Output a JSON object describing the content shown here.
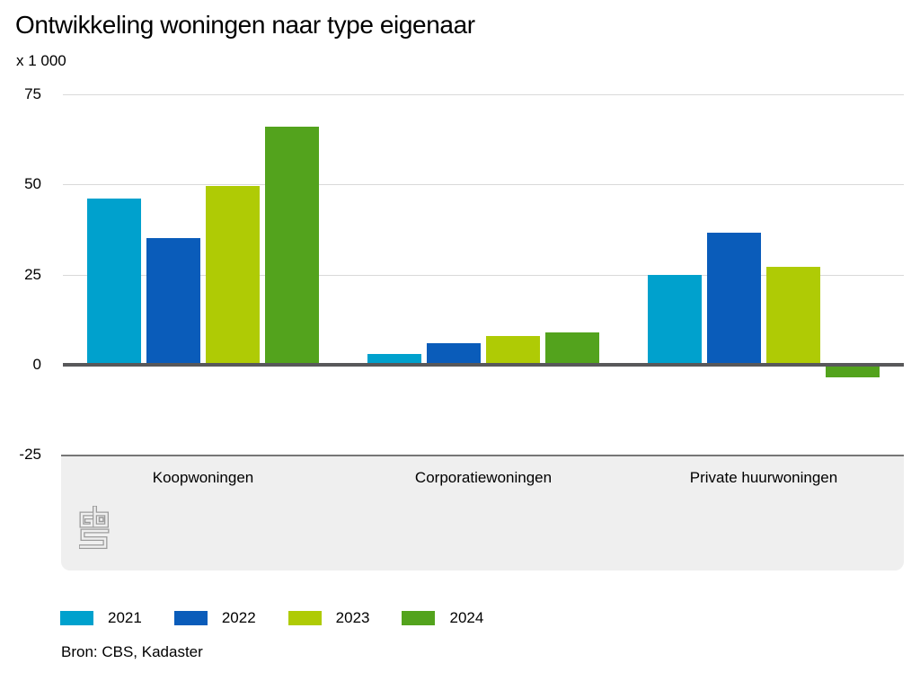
{
  "chart_data": {
    "type": "bar",
    "title": "Ontwikkeling woningen naar type eigenaar",
    "unit_label": "x 1 000",
    "xlabel": "",
    "ylabel": "x 1 000",
    "categories": [
      "Koopwoningen",
      "Corporatiewoningen",
      "Private huurwoningen"
    ],
    "series": [
      {
        "name": "2021",
        "color": "#00a1cd",
        "values": [
          46,
          3,
          25
        ]
      },
      {
        "name": "2022",
        "color": "#0a5cba",
        "values": [
          35,
          6,
          36.5
        ]
      },
      {
        "name": "2023",
        "color": "#afcb05",
        "values": [
          49.5,
          8,
          27
        ]
      },
      {
        "name": "2024",
        "color": "#53a31d",
        "values": [
          66,
          9,
          -3
        ]
      }
    ],
    "ylim": [
      -25,
      75
    ],
    "yticks": [
      75,
      50,
      25,
      0,
      -25
    ],
    "grid": true,
    "legend_position": "bottom",
    "layout_colors": {
      "gridline": "#d9d9d9",
      "zero_axis": "#58585a",
      "band_background": "#efefef",
      "band_border": "#767676",
      "logo_gray": "#9c9c9c"
    }
  },
  "source": {
    "label": "Bron: CBS, Kadaster"
  },
  "logo": {
    "name": "CBS"
  }
}
